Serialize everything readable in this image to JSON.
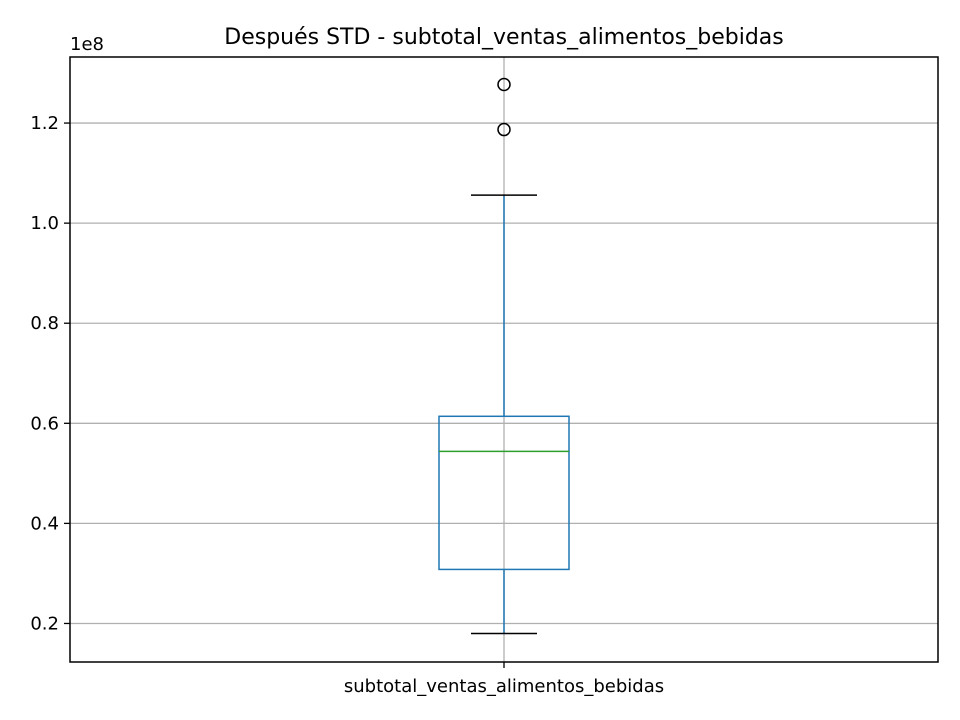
{
  "chart_data": {
    "type": "box",
    "title": "Después STD - subtotal_ventas_alimentos_bebidas",
    "xlabel": "",
    "ylabel": "",
    "offset_label": "1e8",
    "categories": [
      "subtotal_ventas_alimentos_bebidas"
    ],
    "ylim": [
      0.123,
      1.332
    ],
    "yticks": [
      0.2,
      0.4,
      0.6,
      0.8,
      1.0,
      1.2
    ],
    "ytick_labels": [
      "0.2",
      "0.4",
      "0.6",
      "0.8",
      "1.0",
      "1.2"
    ],
    "grid": true,
    "series": [
      {
        "whisker_low": 0.18,
        "q1": 0.308,
        "median": 0.544,
        "q3": 0.614,
        "whisker_high": 1.056,
        "outliers": [
          1.187,
          1.277
        ]
      }
    ],
    "colors": {
      "box": "#1f77b4",
      "median": "#2ca02c",
      "whisker_cap": "#000000",
      "outlier": "#000000",
      "grid": "#b0b0b0",
      "axes": "#000000"
    }
  }
}
